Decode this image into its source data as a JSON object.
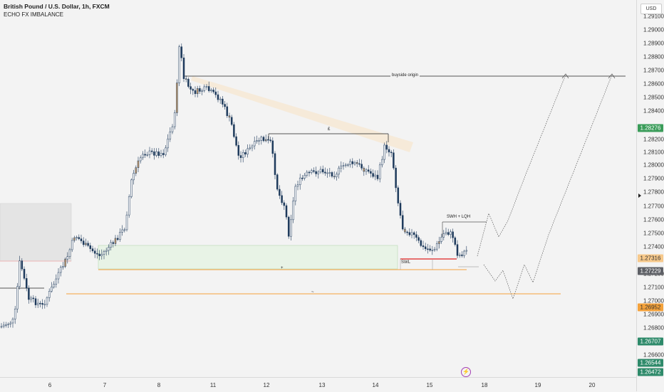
{
  "symbol": {
    "title": "British Pound / U.S. Dollar, 1h, FXCM",
    "indicator": "ECHO FX IMBALANCE"
  },
  "currency_button": "USD",
  "price_axis": {
    "ticks": [
      "1.29100",
      "1.29000",
      "1.28900",
      "1.28800",
      "1.28700",
      "1.28600",
      "1.28500",
      "1.28400",
      "1.28200",
      "1.28100",
      "1.28000",
      "1.27900",
      "1.27800",
      "1.27700",
      "1.27600",
      "1.27500",
      "1.27400",
      "1.27200",
      "1.27100",
      "1.27000",
      "1.26900",
      "1.26800",
      "1.26600"
    ],
    "tags": [
      {
        "label": "1.28276",
        "color": "#3a9c59"
      },
      {
        "label": "1.27316",
        "color": "#f7c98b",
        "text_color": "#333"
      },
      {
        "label": "1.27229",
        "color": "#5e6066"
      },
      {
        "label": "1.26952",
        "color": "#f4a23b",
        "text_color": "#333"
      },
      {
        "label": "1.26707",
        "color": "#2e8a6a"
      },
      {
        "label": "1.26544",
        "color": "#2e8a6a"
      },
      {
        "label": "1.26472",
        "color": "#2e8a6a"
      }
    ]
  },
  "time_axis": {
    "labels": [
      "6",
      "7",
      "8",
      "11",
      "12",
      "13",
      "14",
      "15",
      "18",
      "19",
      "20"
    ]
  },
  "annotations": {
    "buyside": "buyside origin",
    "equal_highs": "£",
    "swl": "SWL",
    "swh_lqh": "SWH + LQH",
    "range_mid": "+",
    "lower_line": "~"
  },
  "chart_data": {
    "type": "candlestick",
    "x": [
      "6",
      "7",
      "8",
      "11",
      "12",
      "13",
      "14",
      "15",
      "18",
      "19",
      "20"
    ],
    "ylim": [
      1.264,
      1.292
    ],
    "levels": {
      "buyside_origin": 1.2866,
      "equal_highs": 1.2823,
      "swl_level": 1.2729,
      "imbalance_top": 1.2742,
      "imbalance_bottom": 1.2722,
      "lower_orange": 1.2705
    }
  }
}
